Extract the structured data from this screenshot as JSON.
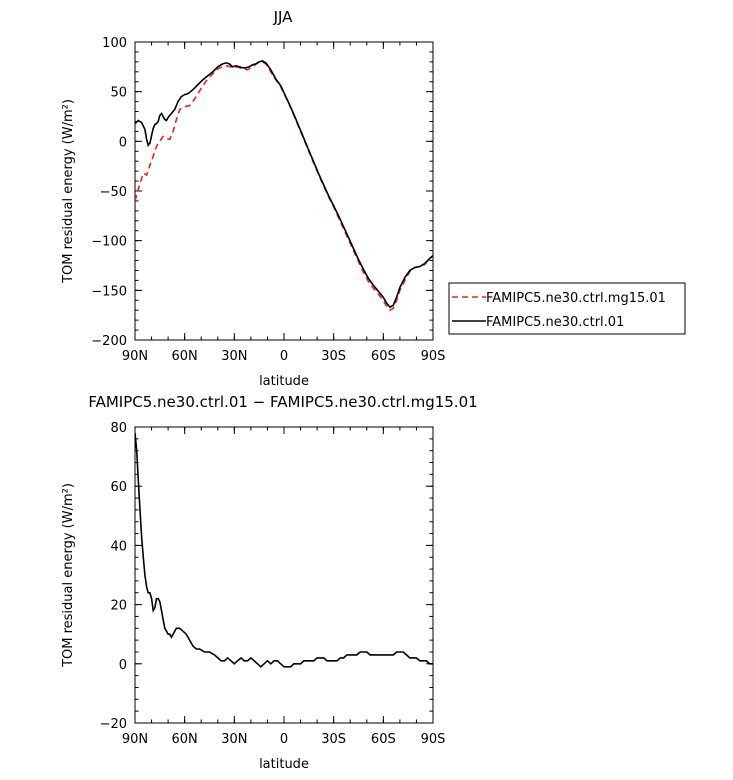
{
  "chart_data": [
    {
      "type": "line",
      "title": "JJA",
      "xlabel": "latitude",
      "ylabel": "TOM residual energy (W/m²)",
      "xlim": [
        90,
        -90
      ],
      "ylim": [
        -200,
        100
      ],
      "xticks": [
        90,
        60,
        30,
        0,
        -30,
        -60,
        -90
      ],
      "xtick_labels": [
        "90N",
        "60N",
        "30N",
        "0",
        "30S",
        "60S",
        "90S"
      ],
      "yticks": [
        100,
        50,
        0,
        -50,
        -100,
        -150,
        -200
      ],
      "ytick_labels": [
        "100",
        "50",
        "0",
        "−50",
        "−100",
        "−150",
        "−200"
      ],
      "legend_position": "right",
      "series": [
        {
          "name": "FAMIPC5.ne30.ctrl.mg15.01",
          "color": "#e8231f",
          "dash": "dashed",
          "points": [
            [
              90,
              -60
            ],
            [
              88,
              -48
            ],
            [
              85,
              -32
            ],
            [
              83,
              -34
            ],
            [
              81,
              -24
            ],
            [
              79,
              -15
            ],
            [
              77,
              -5
            ],
            [
              75,
              0
            ],
            [
              73,
              5
            ],
            [
              71,
              3
            ],
            [
              69,
              2
            ],
            [
              67,
              10
            ],
            [
              65,
              22
            ],
            [
              63,
              32
            ],
            [
              60,
              35
            ],
            [
              57,
              36
            ],
            [
              55,
              40
            ],
            [
              52,
              48
            ],
            [
              49,
              56
            ],
            [
              46,
              63
            ],
            [
              43,
              68
            ],
            [
              40,
              73
            ],
            [
              37,
              75
            ],
            [
              34,
              76
            ],
            [
              31,
              74
            ],
            [
              28,
              75
            ],
            [
              25,
              73
            ],
            [
              22,
              72
            ],
            [
              19,
              75
            ],
            [
              16,
              79
            ],
            [
              13,
              80
            ],
            [
              11,
              78
            ],
            [
              8,
              70
            ],
            [
              5,
              62
            ],
            [
              2,
              55
            ],
            [
              0,
              48
            ],
            [
              -3,
              38
            ],
            [
              -6,
              26
            ],
            [
              -9,
              14
            ],
            [
              -12,
              2
            ],
            [
              -15,
              -10
            ],
            [
              -18,
              -22
            ],
            [
              -21,
              -34
            ],
            [
              -24,
              -45
            ],
            [
              -27,
              -56
            ],
            [
              -30,
              -66
            ],
            [
              -33,
              -77
            ],
            [
              -36,
              -88
            ],
            [
              -39,
              -99
            ],
            [
              -42,
              -110
            ],
            [
              -45,
              -121
            ],
            [
              -48,
              -132
            ],
            [
              -51,
              -141
            ],
            [
              -54,
              -148
            ],
            [
              -57,
              -154
            ],
            [
              -60,
              -160
            ],
            [
              -62,
              -166
            ],
            [
              -64,
              -170
            ],
            [
              -66,
              -168
            ],
            [
              -68,
              -160
            ],
            [
              -70,
              -150
            ],
            [
              -73,
              -140
            ],
            [
              -76,
              -131
            ],
            [
              -79,
              -127
            ],
            [
              -82,
              -126
            ],
            [
              -85,
              -124
            ],
            [
              -88,
              -118
            ],
            [
              -90,
              -115
            ]
          ]
        },
        {
          "name": "FAMIPC5.ne30.ctrl.01",
          "color": "#000000",
          "dash": "solid",
          "points": [
            [
              90,
              18
            ],
            [
              88,
              21
            ],
            [
              86,
              19
            ],
            [
              84,
              12
            ],
            [
              83,
              2
            ],
            [
              82,
              -4
            ],
            [
              81,
              -2
            ],
            [
              80,
              6
            ],
            [
              79,
              13
            ],
            [
              78,
              17
            ],
            [
              77,
              18
            ],
            [
              76,
              20
            ],
            [
              75,
              26
            ],
            [
              74,
              28
            ],
            [
              73,
              25
            ],
            [
              72,
              22
            ],
            [
              71,
              21
            ],
            [
              70,
              24
            ],
            [
              68,
              28
            ],
            [
              66,
              32
            ],
            [
              64,
              40
            ],
            [
              62,
              45
            ],
            [
              60,
              47
            ],
            [
              58,
              48
            ],
            [
              55,
              52
            ],
            [
              52,
              57
            ],
            [
              49,
              62
            ],
            [
              46,
              66
            ],
            [
              43,
              70
            ],
            [
              40,
              75
            ],
            [
              37,
              78
            ],
            [
              35,
              79
            ],
            [
              33,
              78
            ],
            [
              31,
              75
            ],
            [
              29,
              76
            ],
            [
              27,
              75
            ],
            [
              25,
              74
            ],
            [
              23,
              74
            ],
            [
              21,
              75
            ],
            [
              19,
              77
            ],
            [
              17,
              78
            ],
            [
              15,
              80
            ],
            [
              13,
              81
            ],
            [
              11,
              79
            ],
            [
              8,
              72
            ],
            [
              5,
              63
            ],
            [
              2,
              56
            ],
            [
              0,
              49
            ],
            [
              -3,
              38
            ],
            [
              -6,
              27
            ],
            [
              -9,
              15
            ],
            [
              -12,
              3
            ],
            [
              -15,
              -9
            ],
            [
              -18,
              -21
            ],
            [
              -21,
              -33
            ],
            [
              -24,
              -44
            ],
            [
              -27,
              -55
            ],
            [
              -30,
              -65
            ],
            [
              -33,
              -75
            ],
            [
              -36,
              -86
            ],
            [
              -39,
              -97
            ],
            [
              -42,
              -108
            ],
            [
              -45,
              -119
            ],
            [
              -48,
              -129
            ],
            [
              -51,
              -138
            ],
            [
              -54,
              -145
            ],
            [
              -57,
              -151
            ],
            [
              -60,
              -157
            ],
            [
              -62,
              -163
            ],
            [
              -64,
              -167
            ],
            [
              -66,
              -165
            ],
            [
              -68,
              -157
            ],
            [
              -70,
              -147
            ],
            [
              -73,
              -137
            ],
            [
              -76,
              -130
            ],
            [
              -79,
              -127
            ],
            [
              -82,
              -126
            ],
            [
              -85,
              -123
            ],
            [
              -88,
              -118
            ],
            [
              -90,
              -115
            ]
          ]
        }
      ]
    },
    {
      "type": "line",
      "title": "FAMIPC5.ne30.ctrl.01 − FAMIPC5.ne30.ctrl.mg15.01",
      "xlabel": "latitude",
      "ylabel": "TOM residual energy (W/m²)",
      "xlim": [
        90,
        -90
      ],
      "ylim": [
        -20,
        80
      ],
      "xticks": [
        90,
        60,
        30,
        0,
        -30,
        -60,
        -90
      ],
      "xtick_labels": [
        "90N",
        "60N",
        "30N",
        "0",
        "30S",
        "60S",
        "90S"
      ],
      "yticks": [
        80,
        60,
        40,
        20,
        0,
        -20
      ],
      "ytick_labels": [
        "80",
        "60",
        "40",
        "20",
        "0",
        "−20"
      ],
      "series": [
        {
          "color": "#000000",
          "dash": "solid",
          "points": [
            [
              90,
              78
            ],
            [
              89,
              72
            ],
            [
              88,
              62
            ],
            [
              87,
              52
            ],
            [
              86,
              43
            ],
            [
              85,
              36
            ],
            [
              84,
              30
            ],
            [
              83,
              26
            ],
            [
              82,
              24
            ],
            [
              81,
              24
            ],
            [
              80,
              22
            ],
            [
              79,
              18
            ],
            [
              78,
              19
            ],
            [
              77,
              22
            ],
            [
              76,
              22
            ],
            [
              75,
              21
            ],
            [
              74,
              18
            ],
            [
              73,
              15
            ],
            [
              72,
              12
            ],
            [
              71,
              11
            ],
            [
              70,
              10
            ],
            [
              69,
              10
            ],
            [
              68,
              9
            ],
            [
              67,
              10
            ],
            [
              66,
              11
            ],
            [
              65,
              12
            ],
            [
              63,
              12
            ],
            [
              61,
              11
            ],
            [
              59,
              10
            ],
            [
              57,
              8
            ],
            [
              55,
              6
            ],
            [
              53,
              5
            ],
            [
              51,
              5
            ],
            [
              48,
              4
            ],
            [
              45,
              4
            ],
            [
              42,
              3
            ],
            [
              40,
              2
            ],
            [
              38,
              1
            ],
            [
              36,
              1
            ],
            [
              34,
              2
            ],
            [
              32,
              1
            ],
            [
              30,
              0
            ],
            [
              28,
              1
            ],
            [
              26,
              2
            ],
            [
              24,
              1
            ],
            [
              22,
              1
            ],
            [
              20,
              2
            ],
            [
              18,
              1
            ],
            [
              16,
              0
            ],
            [
              14,
              -1
            ],
            [
              12,
              0
            ],
            [
              10,
              1
            ],
            [
              8,
              0
            ],
            [
              6,
              1
            ],
            [
              4,
              1
            ],
            [
              2,
              0
            ],
            [
              0,
              -1
            ],
            [
              -2,
              -1
            ],
            [
              -4,
              -1
            ],
            [
              -6,
              0
            ],
            [
              -8,
              0
            ],
            [
              -10,
              0
            ],
            [
              -12,
              1
            ],
            [
              -14,
              1
            ],
            [
              -16,
              1
            ],
            [
              -18,
              1
            ],
            [
              -20,
              2
            ],
            [
              -22,
              2
            ],
            [
              -24,
              2
            ],
            [
              -26,
              1
            ],
            [
              -28,
              1
            ],
            [
              -30,
              1
            ],
            [
              -32,
              1
            ],
            [
              -34,
              2
            ],
            [
              -36,
              2
            ],
            [
              -38,
              3
            ],
            [
              -40,
              3
            ],
            [
              -42,
              3
            ],
            [
              -44,
              3
            ],
            [
              -46,
              4
            ],
            [
              -48,
              4
            ],
            [
              -50,
              4
            ],
            [
              -52,
              3
            ],
            [
              -54,
              3
            ],
            [
              -56,
              3
            ],
            [
              -58,
              3
            ],
            [
              -60,
              3
            ],
            [
              -62,
              3
            ],
            [
              -64,
              3
            ],
            [
              -66,
              3
            ],
            [
              -68,
              4
            ],
            [
              -70,
              4
            ],
            [
              -72,
              4
            ],
            [
              -74,
              3
            ],
            [
              -76,
              2
            ],
            [
              -78,
              2
            ],
            [
              -80,
              2
            ],
            [
              -82,
              1
            ],
            [
              -84,
              1
            ],
            [
              -86,
              1
            ],
            [
              -88,
              0
            ],
            [
              -90,
              0
            ]
          ]
        }
      ]
    }
  ]
}
